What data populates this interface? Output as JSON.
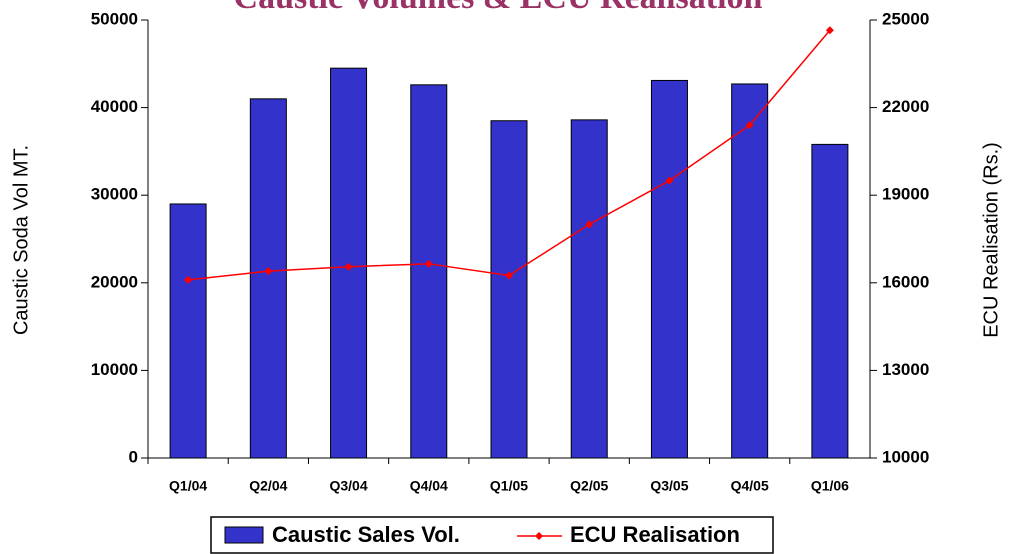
{
  "chart_data": {
    "type": "bar_line",
    "title": "Caustic Volumes & ECU Realisation",
    "y_label": "Caustic Soda Vol MT.",
    "y2_label": "ECU Realisation (Rs.)",
    "categories": [
      "Q1/04",
      "Q2/04",
      "Q3/04",
      "Q4/04",
      "Q1/05",
      "Q2/05",
      "Q3/05",
      "Q4/05",
      "Q1/06"
    ],
    "series": [
      {
        "name": "Caustic Sales Vol.",
        "type": "bar",
        "color": "#3333cc",
        "values": [
          29000,
          41000,
          44500,
          42600,
          38500,
          38600,
          43100,
          42700,
          35800
        ]
      },
      {
        "name": "ECU Realisation",
        "type": "line",
        "axis": "y2",
        "color": "#ff0000",
        "values": [
          16100,
          16400,
          16550,
          16650,
          16250,
          18000,
          19500,
          21400,
          24650
        ]
      }
    ],
    "ylim": [
      0,
      50000
    ],
    "yticks": [
      0,
      10000,
      20000,
      30000,
      40000,
      50000
    ],
    "y2lim": [
      10000,
      25000
    ],
    "y2ticks": [
      10000,
      13000,
      16000,
      19000,
      22000,
      25000
    ],
    "legend": "bottom"
  }
}
